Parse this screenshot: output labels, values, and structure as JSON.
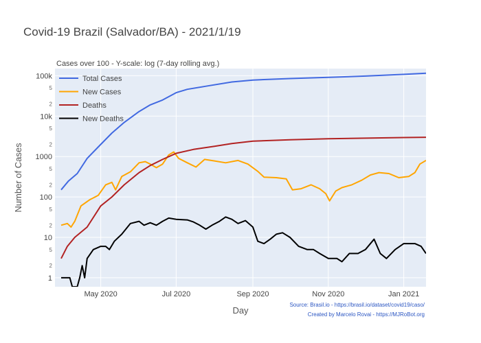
{
  "chart_data": {
    "type": "line",
    "title": "Covid-19 Brazil (Salvador/BA) - 2021/1/19",
    "subtitle": "Cases over 100 - Y-scale: log (7-day rolling avg.)",
    "xlabel": "Day",
    "ylabel": "Number of Cases",
    "yscale": "log",
    "ylim": [
      0.6,
      150000
    ],
    "xlim": [
      "2020-03-25",
      "2021-01-19"
    ],
    "x_ticks": [
      {
        "date": "2020-05-01",
        "label": "May 2020"
      },
      {
        "date": "2020-07-01",
        "label": "Jul 2020"
      },
      {
        "date": "2020-09-01",
        "label": "Sep 2020"
      },
      {
        "date": "2020-11-01",
        "label": "Nov 2020"
      },
      {
        "date": "2021-01-01",
        "label": "Jan 2021"
      }
    ],
    "y_major_ticks": [
      {
        "value": 1,
        "label": "1"
      },
      {
        "value": 10,
        "label": "10"
      },
      {
        "value": 100,
        "label": "100"
      },
      {
        "value": 1000,
        "label": "1000"
      },
      {
        "value": 10000,
        "label": "10k"
      },
      {
        "value": 100000,
        "label": "100k"
      }
    ],
    "y_minor_ticks": [
      {
        "value": 2,
        "label": "2"
      },
      {
        "value": 5,
        "label": "5"
      },
      {
        "value": 20,
        "label": "2"
      },
      {
        "value": 50,
        "label": "5"
      },
      {
        "value": 200,
        "label": "2"
      },
      {
        "value": 500,
        "label": "5"
      },
      {
        "value": 2000,
        "label": "2"
      },
      {
        "value": 5000,
        "label": "5"
      },
      {
        "value": 20000,
        "label": "2"
      },
      {
        "value": 50000,
        "label": "5"
      },
      {
        "value": 200000,
        "label": "2"
      }
    ],
    "grid": true,
    "legend_position": "top-left",
    "series": [
      {
        "name": "Total Cases",
        "color": "#4169e1",
        "points": [
          [
            "2020-03-30",
            150
          ],
          [
            "2020-04-05",
            250
          ],
          [
            "2020-04-12",
            380
          ],
          [
            "2020-04-20",
            900
          ],
          [
            "2020-05-01",
            2000
          ],
          [
            "2020-05-10",
            3800
          ],
          [
            "2020-05-20",
            7000
          ],
          [
            "2020-06-01",
            13000
          ],
          [
            "2020-06-10",
            19000
          ],
          [
            "2020-06-20",
            25000
          ],
          [
            "2020-07-01",
            38000
          ],
          [
            "2020-07-10",
            46000
          ],
          [
            "2020-07-25",
            55000
          ],
          [
            "2020-08-15",
            70000
          ],
          [
            "2020-09-01",
            78000
          ],
          [
            "2020-10-01",
            85000
          ],
          [
            "2020-11-01",
            91000
          ],
          [
            "2020-12-01",
            98000
          ],
          [
            "2021-01-01",
            108000
          ],
          [
            "2021-01-19",
            115000
          ]
        ]
      },
      {
        "name": "New Cases",
        "color": "#ffa500",
        "points": [
          [
            "2020-03-30",
            20
          ],
          [
            "2020-04-04",
            22
          ],
          [
            "2020-04-07",
            18
          ],
          [
            "2020-04-10",
            25
          ],
          [
            "2020-04-15",
            60
          ],
          [
            "2020-04-22",
            85
          ],
          [
            "2020-04-29",
            110
          ],
          [
            "2020-05-05",
            200
          ],
          [
            "2020-05-10",
            230
          ],
          [
            "2020-05-13",
            150
          ],
          [
            "2020-05-18",
            320
          ],
          [
            "2020-05-25",
            420
          ],
          [
            "2020-06-01",
            700
          ],
          [
            "2020-06-06",
            750
          ],
          [
            "2020-06-10",
            650
          ],
          [
            "2020-06-15",
            530
          ],
          [
            "2020-06-20",
            650
          ],
          [
            "2020-06-25",
            1100
          ],
          [
            "2020-06-29",
            1300
          ],
          [
            "2020-07-03",
            900
          ],
          [
            "2020-07-10",
            700
          ],
          [
            "2020-07-17",
            550
          ],
          [
            "2020-07-24",
            850
          ],
          [
            "2020-08-01",
            780
          ],
          [
            "2020-08-10",
            700
          ],
          [
            "2020-08-20",
            800
          ],
          [
            "2020-08-28",
            650
          ],
          [
            "2020-09-05",
            430
          ],
          [
            "2020-09-10",
            310
          ],
          [
            "2020-09-20",
            300
          ],
          [
            "2020-09-28",
            280
          ],
          [
            "2020-10-03",
            150
          ],
          [
            "2020-10-10",
            160
          ],
          [
            "2020-10-18",
            200
          ],
          [
            "2020-10-25",
            160
          ],
          [
            "2020-10-30",
            120
          ],
          [
            "2020-11-02",
            80
          ],
          [
            "2020-11-07",
            140
          ],
          [
            "2020-11-12",
            170
          ],
          [
            "2020-11-20",
            200
          ],
          [
            "2020-11-28",
            260
          ],
          [
            "2020-12-05",
            350
          ],
          [
            "2020-12-12",
            400
          ],
          [
            "2020-12-20",
            380
          ],
          [
            "2020-12-28",
            300
          ],
          [
            "2021-01-05",
            320
          ],
          [
            "2021-01-10",
            400
          ],
          [
            "2021-01-14",
            650
          ],
          [
            "2021-01-19",
            800
          ]
        ]
      },
      {
        "name": "Deaths",
        "color": "#b22222",
        "points": [
          [
            "2020-03-30",
            3
          ],
          [
            "2020-04-04",
            6
          ],
          [
            "2020-04-10",
            10
          ],
          [
            "2020-04-20",
            18
          ],
          [
            "2020-05-01",
            60
          ],
          [
            "2020-05-10",
            100
          ],
          [
            "2020-05-20",
            200
          ],
          [
            "2020-06-01",
            400
          ],
          [
            "2020-06-10",
            600
          ],
          [
            "2020-06-20",
            850
          ],
          [
            "2020-07-01",
            1200
          ],
          [
            "2020-07-15",
            1500
          ],
          [
            "2020-08-01",
            1800
          ],
          [
            "2020-08-15",
            2100
          ],
          [
            "2020-09-01",
            2400
          ],
          [
            "2020-10-01",
            2600
          ],
          [
            "2020-11-01",
            2750
          ],
          [
            "2020-12-01",
            2850
          ],
          [
            "2021-01-01",
            2950
          ],
          [
            "2021-01-19",
            3000
          ]
        ]
      },
      {
        "name": "New Deaths",
        "color": "#000000",
        "points": [
          [
            "2020-03-30",
            1
          ],
          [
            "2020-04-06",
            1
          ],
          [
            "2020-04-08",
            0.6
          ],
          [
            "2020-04-12",
            0.6
          ],
          [
            "2020-04-14",
            1
          ],
          [
            "2020-04-16",
            2
          ],
          [
            "2020-04-18",
            1
          ],
          [
            "2020-04-20",
            3
          ],
          [
            "2020-04-25",
            5
          ],
          [
            "2020-05-01",
            6
          ],
          [
            "2020-05-05",
            6
          ],
          [
            "2020-05-08",
            5
          ],
          [
            "2020-05-12",
            8
          ],
          [
            "2020-05-18",
            12
          ],
          [
            "2020-05-25",
            22
          ],
          [
            "2020-06-01",
            25
          ],
          [
            "2020-06-05",
            20
          ],
          [
            "2020-06-10",
            23
          ],
          [
            "2020-06-15",
            20
          ],
          [
            "2020-06-20",
            25
          ],
          [
            "2020-06-25",
            30
          ],
          [
            "2020-07-01",
            28
          ],
          [
            "2020-07-10",
            27
          ],
          [
            "2020-07-15",
            24
          ],
          [
            "2020-07-20",
            20
          ],
          [
            "2020-07-25",
            16
          ],
          [
            "2020-07-30",
            20
          ],
          [
            "2020-08-05",
            25
          ],
          [
            "2020-08-10",
            32
          ],
          [
            "2020-08-15",
            28
          ],
          [
            "2020-08-20",
            22
          ],
          [
            "2020-08-26",
            26
          ],
          [
            "2020-09-01",
            18
          ],
          [
            "2020-09-05",
            8
          ],
          [
            "2020-09-10",
            7
          ],
          [
            "2020-09-15",
            9
          ],
          [
            "2020-09-20",
            12
          ],
          [
            "2020-09-25",
            13
          ],
          [
            "2020-10-01",
            10
          ],
          [
            "2020-10-08",
            6
          ],
          [
            "2020-10-15",
            5
          ],
          [
            "2020-10-20",
            5
          ],
          [
            "2020-10-25",
            4
          ],
          [
            "2020-11-01",
            3
          ],
          [
            "2020-11-08",
            3
          ],
          [
            "2020-11-12",
            2.5
          ],
          [
            "2020-11-18",
            4
          ],
          [
            "2020-11-25",
            4
          ],
          [
            "2020-12-01",
            5
          ],
          [
            "2020-12-08",
            9
          ],
          [
            "2020-12-13",
            4
          ],
          [
            "2020-12-18",
            3
          ],
          [
            "2020-12-25",
            5
          ],
          [
            "2021-01-01",
            7
          ],
          [
            "2021-01-10",
            7
          ],
          [
            "2021-01-15",
            6
          ],
          [
            "2021-01-19",
            4
          ]
        ]
      }
    ]
  },
  "credits": {
    "source": "Source: Brasil.io - https://brasil.io/dataset/covid19/caso/",
    "author": "Created by Marcelo Rovai - https://MJRoBot.org"
  }
}
